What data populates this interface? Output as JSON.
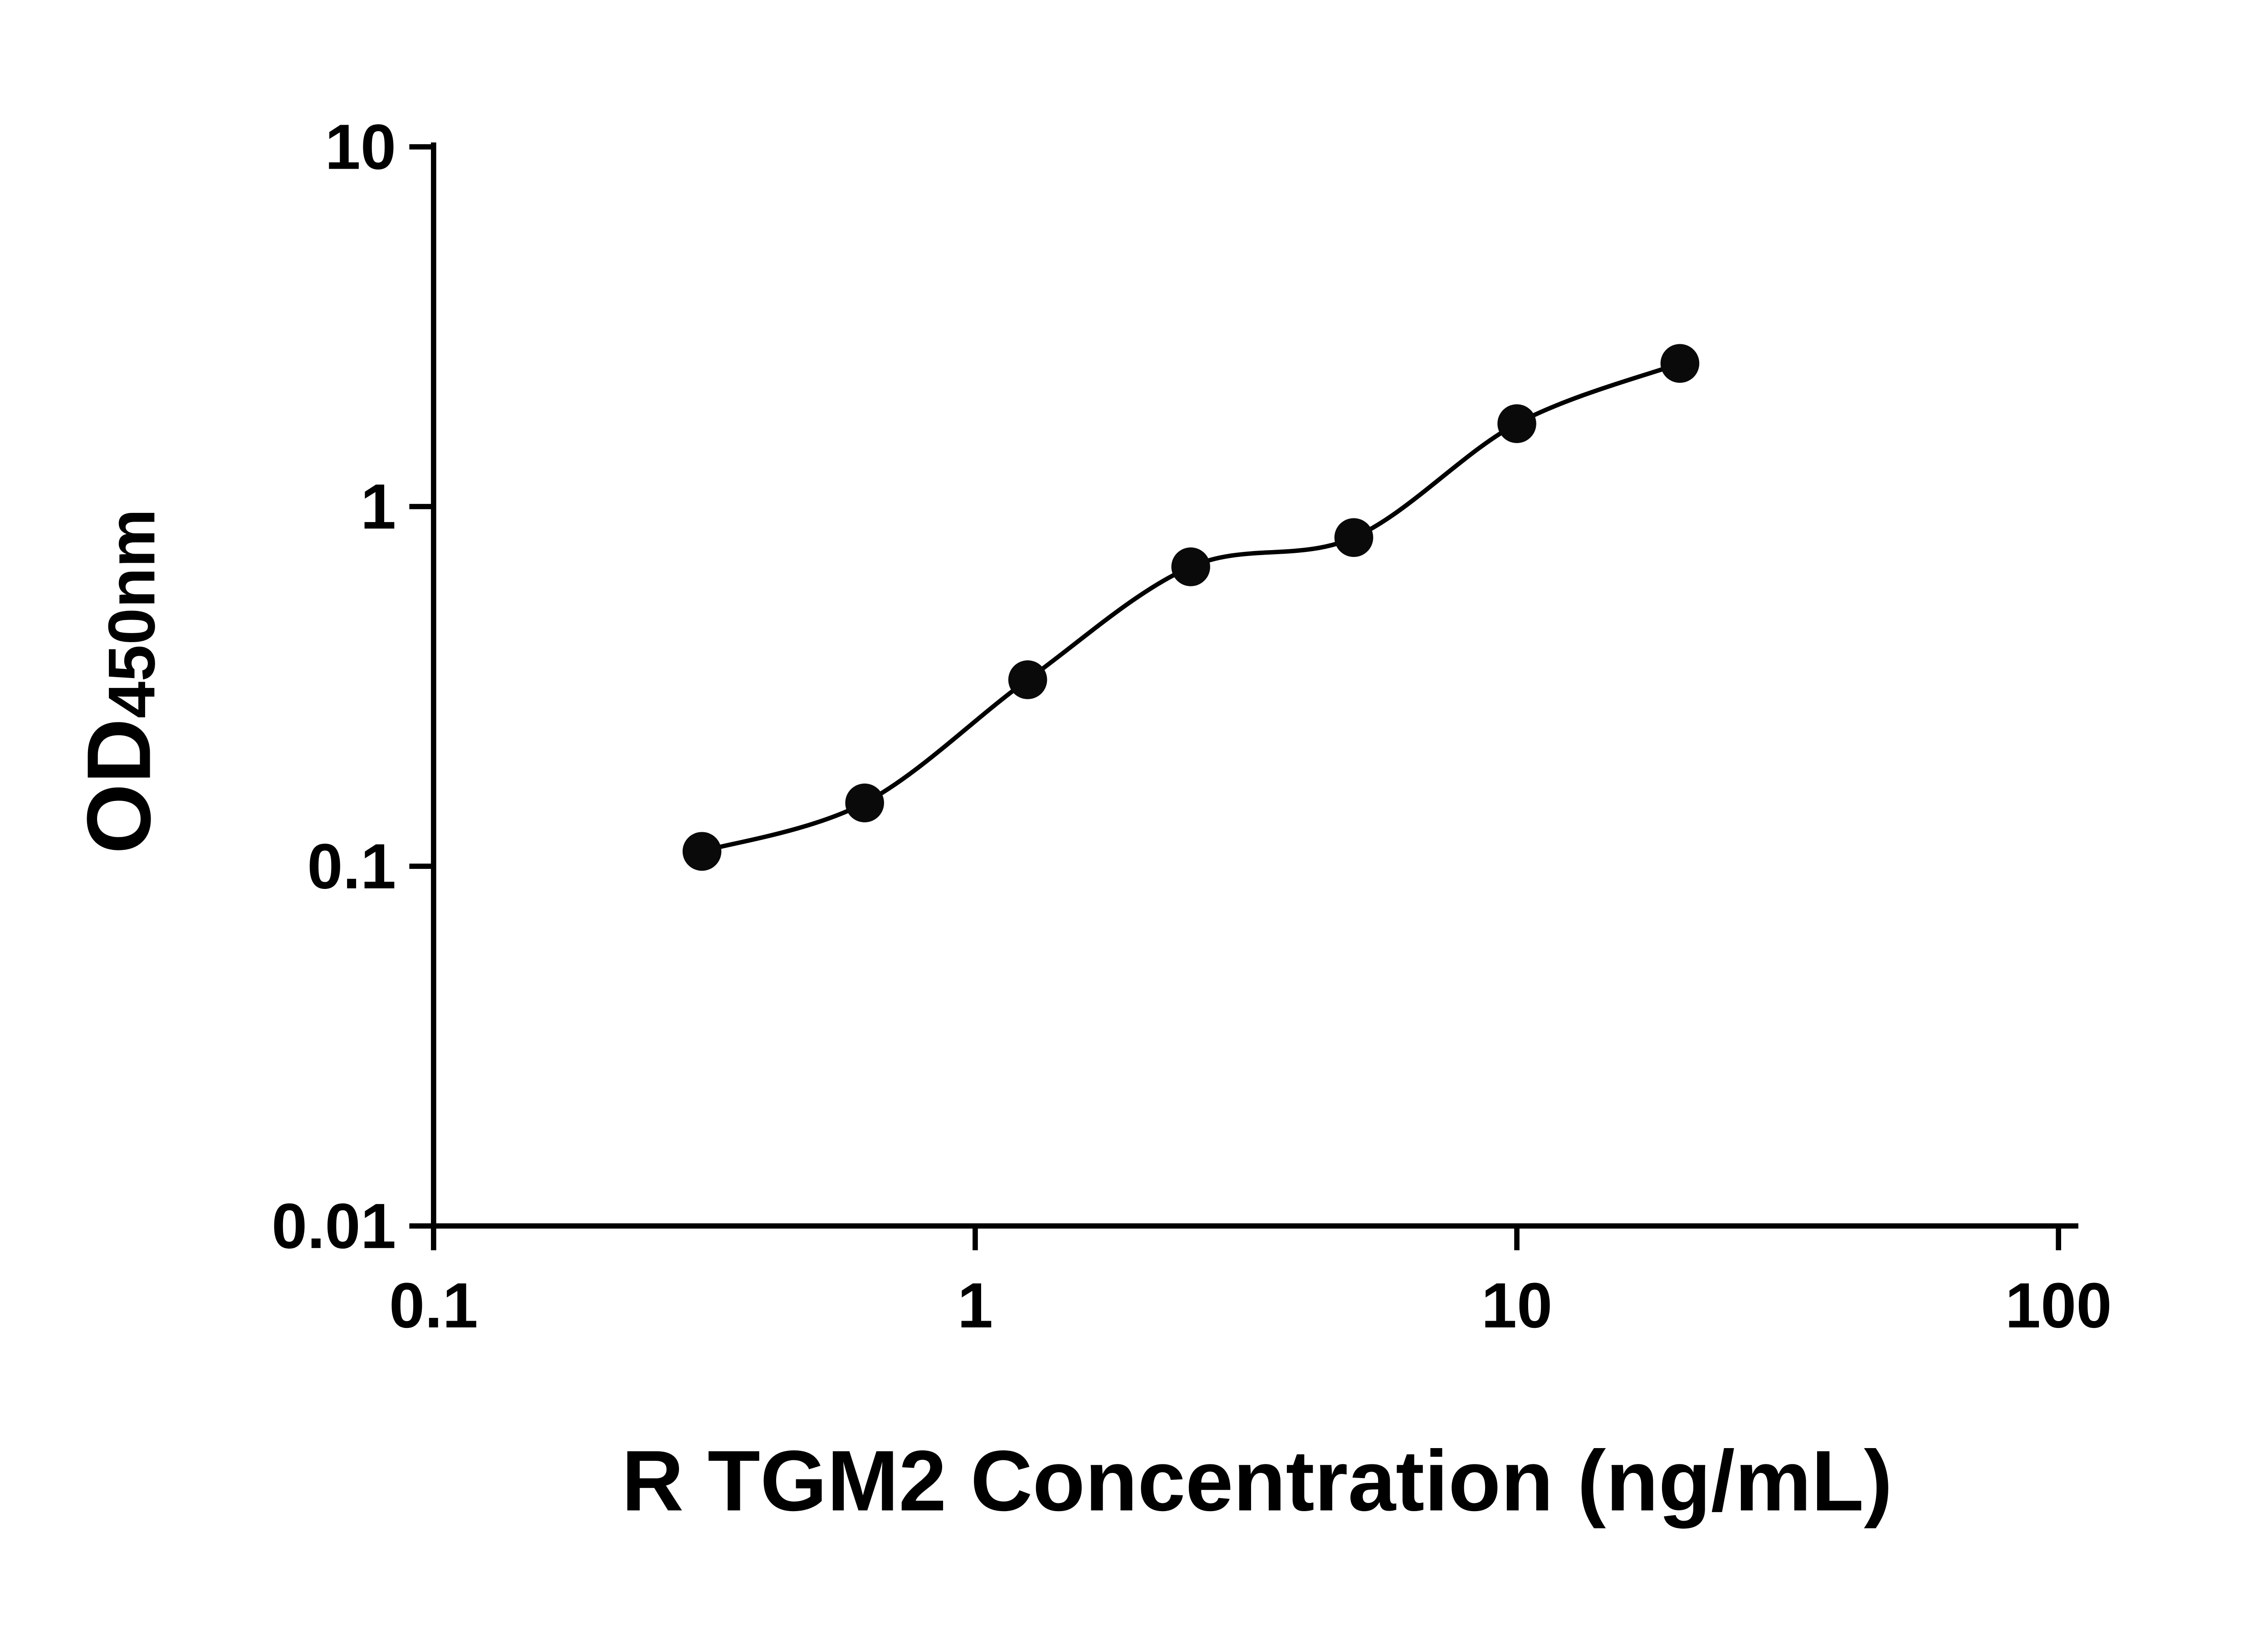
{
  "figure": {
    "background": "#ffffff"
  },
  "chart_data": {
    "type": "scatter",
    "title": "",
    "xlabel": "R TGM2 Concentration (ng/mL)",
    "ylabel_main": "OD",
    "ylabel_sub": "450nm",
    "x_scale": "log",
    "y_scale": "log",
    "xlim": [
      0.1,
      100
    ],
    "ylim": [
      0.01,
      10
    ],
    "grid": false,
    "legend": "none",
    "axis_color": "#000000",
    "x_ticks": [
      {
        "value": 0.1,
        "label": "0.1"
      },
      {
        "value": 1,
        "label": "1"
      },
      {
        "value": 10,
        "label": "10"
      },
      {
        "value": 100,
        "label": "100"
      }
    ],
    "y_ticks": [
      {
        "value": 0.01,
        "label": "0.01"
      },
      {
        "value": 0.1,
        "label": "0.1"
      },
      {
        "value": 1,
        "label": "1"
      },
      {
        "value": 10,
        "label": "10"
      }
    ],
    "series": [
      {
        "marker": "circle",
        "point_color": "#0a0a0a",
        "line_color": "#000000",
        "trendline": "smooth",
        "points": [
          {
            "x": 0.313,
            "y": 0.11
          },
          {
            "x": 0.625,
            "y": 0.15
          },
          {
            "x": 1.25,
            "y": 0.33
          },
          {
            "x": 2.5,
            "y": 0.68
          },
          {
            "x": 5,
            "y": 0.82
          },
          {
            "x": 10,
            "y": 1.7
          },
          {
            "x": 20,
            "y": 2.5
          }
        ]
      }
    ]
  }
}
